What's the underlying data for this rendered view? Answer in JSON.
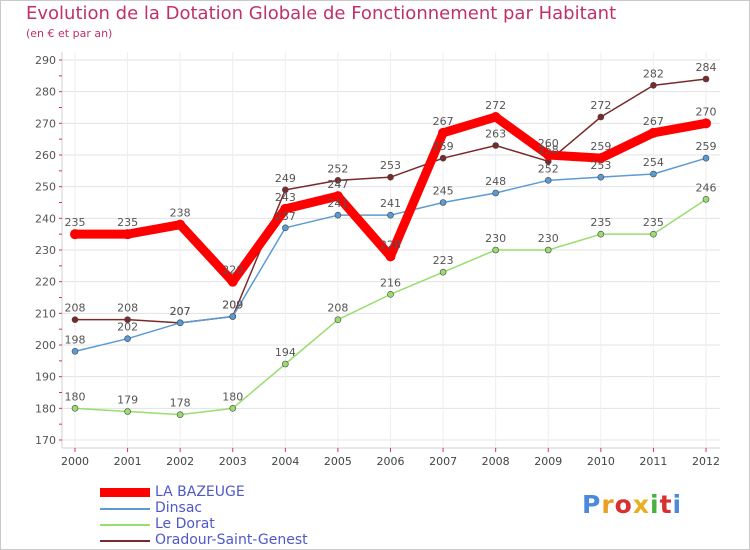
{
  "title": "Evolution de la Dotation Globale de Fonctionnement par Habitant",
  "subtitle": "(en € et par an)",
  "logo": {
    "text": "Proxiti"
  },
  "chart_data": {
    "type": "line",
    "title": "Evolution de la Dotation Globale de Fonctionnement par Habitant",
    "subtitle": "(en € et par an)",
    "xlabel": "",
    "ylabel": "",
    "x": [
      "2000",
      "2001",
      "2002",
      "2003",
      "2004",
      "2005",
      "2006",
      "2007",
      "2008",
      "2009",
      "2010",
      "2011",
      "2012"
    ],
    "ylim": [
      170,
      290
    ],
    "yticks": [
      170,
      180,
      190,
      200,
      210,
      220,
      230,
      240,
      250,
      260,
      270,
      280,
      290
    ],
    "grid": true,
    "legend_position": "bottom-left",
    "series": [
      {
        "name": "LA BAZEUGE",
        "color": "#ff0000",
        "values": [
          235,
          235,
          238,
          220,
          243,
          247,
          228,
          267,
          272,
          260,
          259,
          267,
          270
        ]
      },
      {
        "name": "Dinsac",
        "color": "#5b9bd5",
        "values": [
          198,
          202,
          207,
          209,
          237,
          241,
          241,
          245,
          248,
          252,
          253,
          254,
          259
        ]
      },
      {
        "name": "Le Dorat",
        "color": "#99dd6e",
        "values": [
          180,
          179,
          178,
          180,
          194,
          208,
          216,
          223,
          230,
          230,
          235,
          235,
          246
        ]
      },
      {
        "name": "Oradour-Saint-Genest",
        "color": "#7a2a2a",
        "values": [
          208,
          208,
          207,
          209,
          249,
          252,
          253,
          259,
          263,
          258,
          272,
          282,
          284
        ]
      }
    ]
  }
}
